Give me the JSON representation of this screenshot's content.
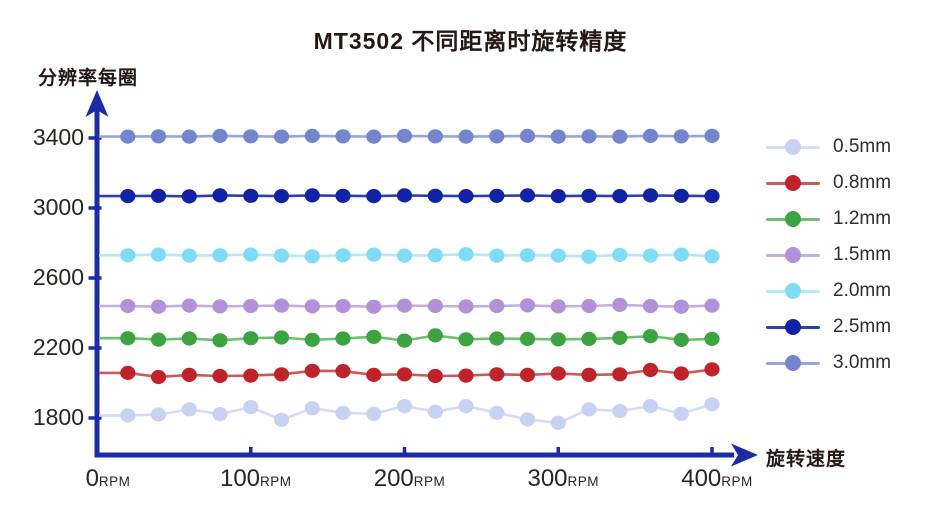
{
  "chart": {
    "title": "MT3502 不同距离时旋转精度",
    "y_axis_label": "分辨率每圈",
    "x_axis_label": "旋转速度"
  },
  "colors": {
    "axis": "#1b2ba3",
    "tick_text": "#2b2422",
    "title_text": "#231815",
    "background": "#ffffff"
  },
  "chart_data": {
    "type": "line",
    "title": "MT3502 不同距离时旋转精度",
    "xlabel": "旋转速度",
    "ylabel": "分辨率每圈",
    "x_unit": "RPM",
    "grid": false,
    "legend_position": "right",
    "xlim": [
      0,
      400
    ],
    "ylim": [
      1700,
      3500
    ],
    "x_ticks": [
      0,
      100,
      200,
      300,
      400
    ],
    "y_ticks": [
      1800,
      2200,
      2600,
      3000,
      3400
    ],
    "x": [
      20,
      40,
      60,
      80,
      100,
      120,
      140,
      160,
      180,
      200,
      220,
      240,
      260,
      280,
      300,
      320,
      340,
      360,
      380,
      400
    ],
    "series": [
      {
        "name": "0.5mm",
        "color": "#c7d1f2",
        "line_color": "#d4dbf5",
        "values": [
          1815,
          1820,
          1850,
          1822,
          1862,
          1790,
          1856,
          1830,
          1824,
          1868,
          1836,
          1868,
          1830,
          1792,
          1772,
          1850,
          1840,
          1868,
          1824,
          1878
        ]
      },
      {
        "name": "0.8mm",
        "color": "#bf2329",
        "line_color": "#cd575b",
        "values": [
          2058,
          2034,
          2046,
          2040,
          2042,
          2050,
          2070,
          2068,
          2046,
          2050,
          2040,
          2042,
          2050,
          2046,
          2054,
          2046,
          2050,
          2074,
          2054,
          2078
        ]
      },
      {
        "name": "1.2mm",
        "color": "#3ba33f",
        "line_color": "#6fbe71",
        "values": [
          2256,
          2248,
          2254,
          2244,
          2256,
          2260,
          2246,
          2254,
          2264,
          2242,
          2272,
          2250,
          2254,
          2252,
          2250,
          2252,
          2258,
          2268,
          2246,
          2252
        ]
      },
      {
        "name": "1.5mm",
        "color": "#b191d7",
        "line_color": "#c5ade2",
        "values": [
          2440,
          2436,
          2442,
          2438,
          2440,
          2442,
          2438,
          2440,
          2436,
          2442,
          2440,
          2438,
          2440,
          2444,
          2438,
          2440,
          2446,
          2440,
          2436,
          2442
        ]
      },
      {
        "name": "2.0mm",
        "color": "#7fdcf4",
        "line_color": "#b2e8f8",
        "values": [
          2730,
          2734,
          2728,
          2730,
          2734,
          2728,
          2724,
          2730,
          2734,
          2728,
          2730,
          2736,
          2728,
          2730,
          2728,
          2722,
          2732,
          2728,
          2734,
          2724
        ]
      },
      {
        "name": "2.5mm",
        "color": "#1023a5",
        "line_color": "#2c3fb0",
        "values": [
          3068,
          3070,
          3066,
          3072,
          3070,
          3068,
          3072,
          3070,
          3068,
          3072,
          3070,
          3068,
          3070,
          3072,
          3068,
          3070,
          3068,
          3072,
          3070,
          3068
        ]
      },
      {
        "name": "3.0mm",
        "color": "#7385cd",
        "line_color": "#97a5dc",
        "values": [
          3408,
          3410,
          3408,
          3412,
          3410,
          3408,
          3412,
          3410,
          3408,
          3412,
          3410,
          3408,
          3410,
          3412,
          3408,
          3410,
          3408,
          3412,
          3410,
          3412
        ]
      }
    ]
  }
}
